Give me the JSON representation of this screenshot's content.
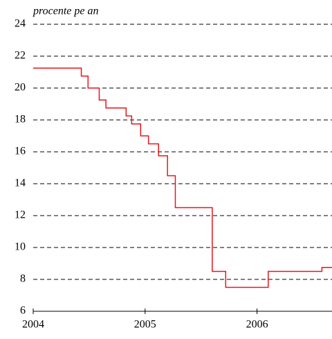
{
  "chart_data": {
    "type": "step",
    "ylabel": "procente pe an",
    "x": [
      2004.0,
      2004.43,
      2004.49,
      2004.59,
      2004.65,
      2004.83,
      2004.88,
      2004.96,
      2005.03,
      2005.12,
      2005.2,
      2005.27,
      2005.6,
      2005.72,
      2006.1,
      2006.58,
      2006.67
    ],
    "series": [
      {
        "color": "#e8141e",
        "values": [
          21.25,
          20.75,
          20.0,
          19.25,
          18.75,
          18.25,
          17.75,
          17.0,
          16.5,
          15.75,
          14.5,
          12.5,
          8.5,
          7.5,
          8.5,
          8.75,
          8.75
        ]
      }
    ],
    "xlim": [
      2004,
      2006.67
    ],
    "xticks": [
      2004,
      2005,
      2006
    ],
    "ylim": [
      6,
      24
    ],
    "yticks": [
      6,
      8,
      10,
      12,
      14,
      16,
      18,
      20,
      22,
      24
    ],
    "grid": true
  }
}
